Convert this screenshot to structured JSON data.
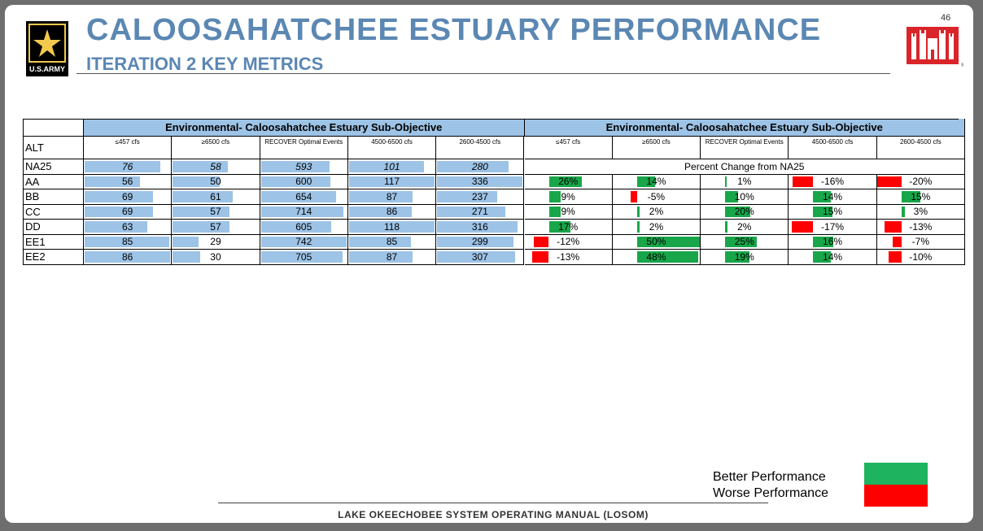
{
  "header": {
    "title": "CALOOSAHATCHEE ESTUARY PERFORMANCE",
    "subtitle": "ITERATION 2 KEY METRICS",
    "page_number": "46",
    "army_logo_text": "U.S.ARMY"
  },
  "table": {
    "group_title_left": "Environmental- Caloosahatchee Estuary Sub-Objective",
    "group_title_right": "Environmental- Caloosahatchee Estuary Sub-Objective",
    "alt_label": "ALT",
    "columns": [
      "≤457 cfs",
      "≥6500 cfs",
      "RECOVER Optimal Events",
      "4500-6500 cfs",
      "2600-4500 cfs"
    ],
    "baseline_note": "Percent Change from NA25",
    "baseline": {
      "alt": "NA25",
      "values": [
        "76",
        "58",
        "593",
        "101",
        "280"
      ],
      "fill": [
        0.88,
        0.64,
        0.8,
        0.87,
        0.83
      ]
    },
    "rows": [
      {
        "alt": "AA",
        "values": [
          "56",
          "50",
          "600",
          "117",
          "336"
        ],
        "fill": [
          0.65,
          0.55,
          0.81,
          1.0,
          1.0
        ],
        "pct": [
          "26%",
          "14%",
          "1%",
          "-16%",
          "-20%"
        ],
        "pct_val": [
          26,
          14,
          1,
          -16,
          -20
        ]
      },
      {
        "alt": "BB",
        "values": [
          "69",
          "61",
          "654",
          "87",
          "237"
        ],
        "fill": [
          0.8,
          0.7,
          0.88,
          0.74,
          0.7
        ],
        "pct": [
          "9%",
          "-5%",
          "10%",
          "14%",
          "15%"
        ],
        "pct_val": [
          9,
          -5,
          10,
          14,
          15
        ]
      },
      {
        "alt": "CC",
        "values": [
          "69",
          "57",
          "714",
          "86",
          "271"
        ],
        "fill": [
          0.8,
          0.66,
          0.96,
          0.73,
          0.8
        ],
        "pct": [
          "9%",
          "2%",
          "20%",
          "15%",
          "3%"
        ],
        "pct_val": [
          9,
          2,
          20,
          15,
          3
        ]
      },
      {
        "alt": "DD",
        "values": [
          "63",
          "57",
          "605",
          "118",
          "316"
        ],
        "fill": [
          0.73,
          0.66,
          0.82,
          1.0,
          0.94
        ],
        "pct": [
          "17%",
          "2%",
          "2%",
          "-17%",
          "-13%"
        ],
        "pct_val": [
          17,
          2,
          2,
          -17,
          -13
        ]
      },
      {
        "alt": "EE1",
        "values": [
          "85",
          "29",
          "742",
          "85",
          "299"
        ],
        "fill": [
          0.99,
          0.3,
          1.0,
          0.72,
          0.89
        ],
        "pct": [
          "-12%",
          "50%",
          "25%",
          "16%",
          "-7%"
        ],
        "pct_val": [
          -12,
          50,
          25,
          16,
          -7
        ]
      },
      {
        "alt": "EE2",
        "values": [
          "86",
          "30",
          "705",
          "87",
          "307"
        ],
        "fill": [
          1.0,
          0.32,
          0.95,
          0.74,
          0.91
        ],
        "pct": [
          "-13%",
          "48%",
          "19%",
          "14%",
          "-10%"
        ],
        "pct_val": [
          -13,
          48,
          19,
          14,
          -10
        ]
      }
    ]
  },
  "legend": {
    "better_label": "Better Performance",
    "worse_label": "Worse Performance",
    "better_color": "#1db35f",
    "worse_color": "#ff0000"
  },
  "footer": {
    "text": "LAKE OKEECHOBEE SYSTEM OPERATING MANUAL (LOSOM)"
  },
  "colors": {
    "title": "#5b87b3",
    "header_band": "#9dc3e6",
    "data_bar": "#9dc3e6",
    "positive": "#19a64a",
    "negative": "#ff0000"
  }
}
